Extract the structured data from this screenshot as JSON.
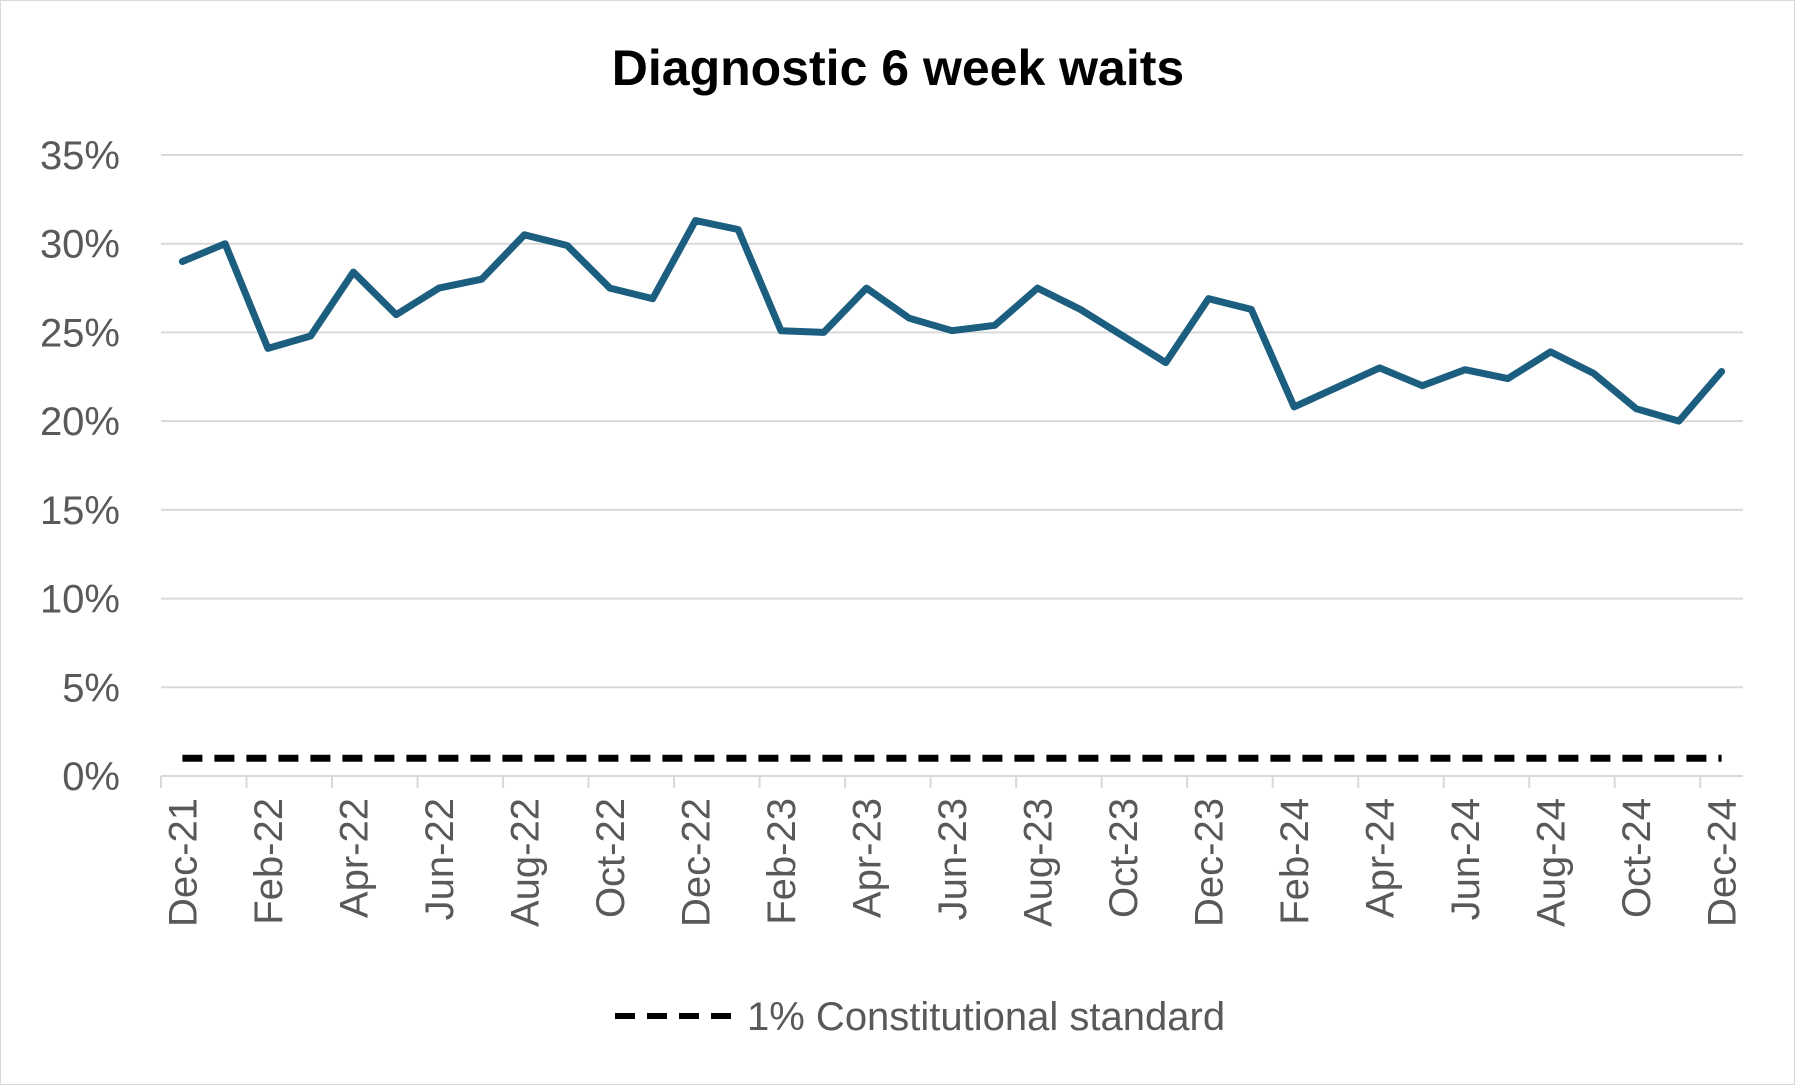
{
  "chart_data": {
    "type": "line",
    "title": "Diagnostic 6 week waits",
    "xlabel": "",
    "ylabel": "",
    "ylim": [
      0,
      35
    ],
    "y_ticks": [
      "0%",
      "5%",
      "10%",
      "15%",
      "20%",
      "25%",
      "30%",
      "35%"
    ],
    "x_tick_labels": [
      "Dec-21",
      "Feb-22",
      "Apr-22",
      "Jun-22",
      "Aug-22",
      "Oct-22",
      "Dec-22",
      "Feb-23",
      "Apr-23",
      "Jun-23",
      "Aug-23",
      "Oct-23",
      "Dec-23",
      "Feb-24",
      "Apr-24",
      "Jun-24",
      "Aug-24",
      "Oct-24",
      "Dec-24"
    ],
    "categories": [
      "Dec-21",
      "Jan-22",
      "Feb-22",
      "Mar-22",
      "Apr-22",
      "May-22",
      "Jun-22",
      "Jul-22",
      "Aug-22",
      "Sep-22",
      "Oct-22",
      "Nov-22",
      "Dec-22",
      "Jan-23",
      "Feb-23",
      "Mar-23",
      "Apr-23",
      "May-23",
      "Jun-23",
      "Jul-23",
      "Aug-23",
      "Sep-23",
      "Oct-23",
      "Nov-23",
      "Dec-23",
      "Jan-24",
      "Feb-24",
      "Mar-24",
      "Apr-24",
      "May-24",
      "Jun-24",
      "Jul-24",
      "Aug-24",
      "Sep-24",
      "Oct-24",
      "Nov-24",
      "Dec-24"
    ],
    "grid": true,
    "legend_position": "bottom",
    "series": [
      {
        "color": "#1b5e80",
        "style": "solid",
        "values": [
          29.0,
          30.0,
          24.1,
          24.8,
          28.4,
          26.0,
          27.5,
          28.0,
          30.5,
          29.9,
          27.5,
          26.9,
          31.3,
          30.8,
          25.1,
          25.0,
          27.5,
          25.8,
          25.1,
          25.4,
          27.5,
          26.3,
          24.8,
          23.3,
          26.9,
          26.3,
          20.8,
          21.9,
          23.0,
          22.0,
          22.9,
          22.4,
          23.9,
          22.7,
          20.7,
          20.0,
          22.8
        ]
      },
      {
        "name": "1% Constitutional standard",
        "color": "#000000",
        "style": "dashed",
        "values": [
          1,
          1,
          1,
          1,
          1,
          1,
          1,
          1,
          1,
          1,
          1,
          1,
          1,
          1,
          1,
          1,
          1,
          1,
          1,
          1,
          1,
          1,
          1,
          1,
          1,
          1,
          1,
          1,
          1,
          1,
          1,
          1,
          1,
          1,
          1,
          1,
          1
        ]
      }
    ]
  }
}
